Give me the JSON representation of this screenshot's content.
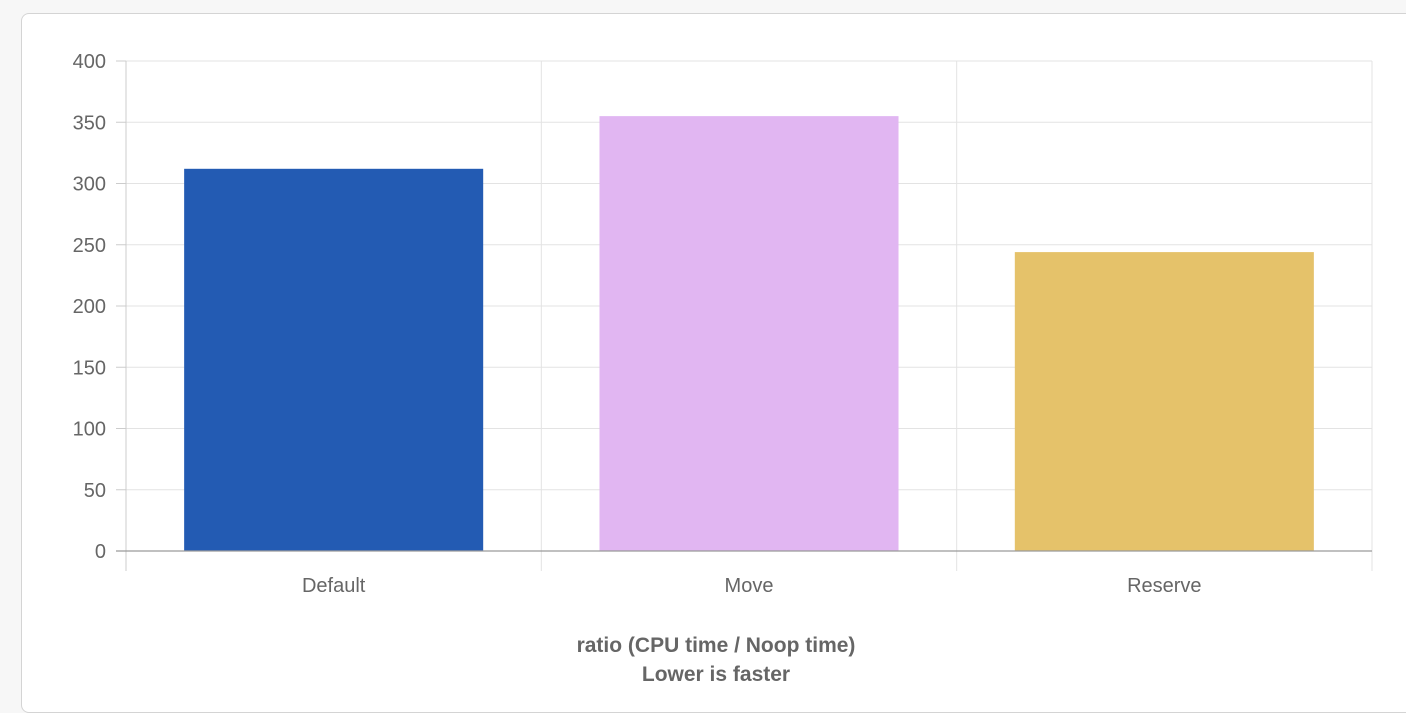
{
  "chart_data": {
    "type": "bar",
    "categories": [
      "Default",
      "Move",
      "Reserve"
    ],
    "values": [
      312,
      355,
      244
    ],
    "colors": [
      "#235bb3",
      "#e1b6f2",
      "#e5c26a"
    ],
    "ylim": [
      0,
      400
    ],
    "yticks": [
      "0",
      "50",
      "100",
      "150",
      "200",
      "250",
      "300",
      "350",
      "400"
    ],
    "xlabel_lines": [
      "ratio (CPU time / Noop time)",
      "Lower is faster"
    ],
    "grid": true,
    "legend": "none"
  }
}
